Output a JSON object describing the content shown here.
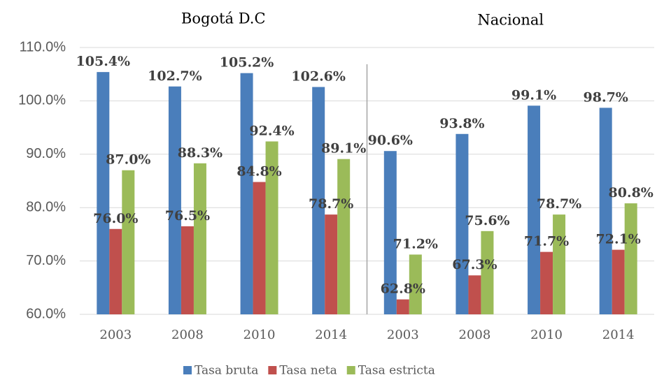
{
  "chart_data": {
    "type": "bar",
    "groups": [
      {
        "title": "Bogotá D.C",
        "categories": [
          "2003",
          "2008",
          "2010",
          "2014"
        ]
      },
      {
        "title": "Nacional",
        "categories": [
          "2003",
          "2008",
          "2010",
          "2014"
        ]
      }
    ],
    "series": [
      {
        "name": "Tasa bruta",
        "color": "#4a7ebb",
        "values": [
          105.4,
          102.7,
          105.2,
          102.6,
          90.6,
          93.8,
          99.1,
          98.7
        ],
        "value_labels": [
          "105.4%",
          "102.7%",
          "105.2%",
          "102.6%",
          "90.6%",
          "93.8%",
          "99.1%",
          "98.7%"
        ]
      },
      {
        "name": "Tasa neta",
        "color": "#c0504d",
        "values": [
          76.0,
          76.5,
          84.8,
          78.7,
          62.8,
          67.3,
          71.7,
          72.1
        ],
        "value_labels": [
          "76.0%",
          "76.5%",
          "84.8%",
          "78.7%",
          "62.8%",
          "67.3%",
          "71.7%",
          "72.1%"
        ]
      },
      {
        "name": "Tasa estricta",
        "color": "#9bbb59",
        "values": [
          87.0,
          88.3,
          92.4,
          89.1,
          71.2,
          75.6,
          78.7,
          80.8
        ],
        "value_labels": [
          "87.0%",
          "88.3%",
          "92.4%",
          "89.1%",
          "71.2%",
          "75.6%",
          "78.7%",
          "80.8%"
        ]
      }
    ],
    "ylim": [
      60,
      110
    ],
    "yticks": [
      {
        "value": 60,
        "label": "60.0%"
      },
      {
        "value": 70,
        "label": "70.0%"
      },
      {
        "value": 80,
        "label": "80.0%"
      },
      {
        "value": 90,
        "label": "90.0%"
      },
      {
        "value": 100,
        "label": "100.0%"
      },
      {
        "value": 110,
        "label": "110.0%"
      }
    ],
    "grid": true,
    "legend": "bottom"
  }
}
